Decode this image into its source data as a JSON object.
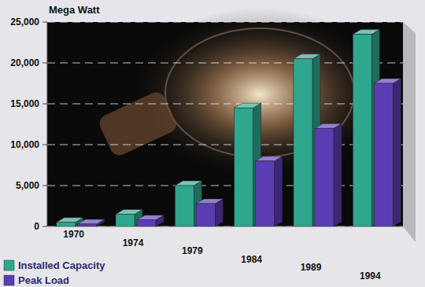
{
  "chart_data": {
    "type": "bar",
    "y_label": "Mega Watt",
    "categories": [
      "1970",
      "1974",
      "1979",
      "1984",
      "1989",
      "1994"
    ],
    "series": [
      {
        "name": "Installed Capacity",
        "color": "#2fa68e",
        "values": [
          500,
          1500,
          5000,
          14500,
          20500,
          23500
        ]
      },
      {
        "name": "Peak Load",
        "color": "#5b3db3",
        "values": [
          300,
          800,
          2800,
          8000,
          12000,
          17500
        ]
      }
    ],
    "ylim": [
      0,
      25000
    ],
    "yticks": [
      0,
      {
        "value": 5000,
        "label": "5,000"
      },
      {
        "value": 10000,
        "label": "10,000"
      },
      {
        "value": 15000,
        "label": "15,000"
      },
      {
        "value": 20000,
        "label": "20,000"
      },
      {
        "value": 25000,
        "label": "25,000"
      }
    ],
    "grid": true,
    "legend": "bottom-left"
  }
}
